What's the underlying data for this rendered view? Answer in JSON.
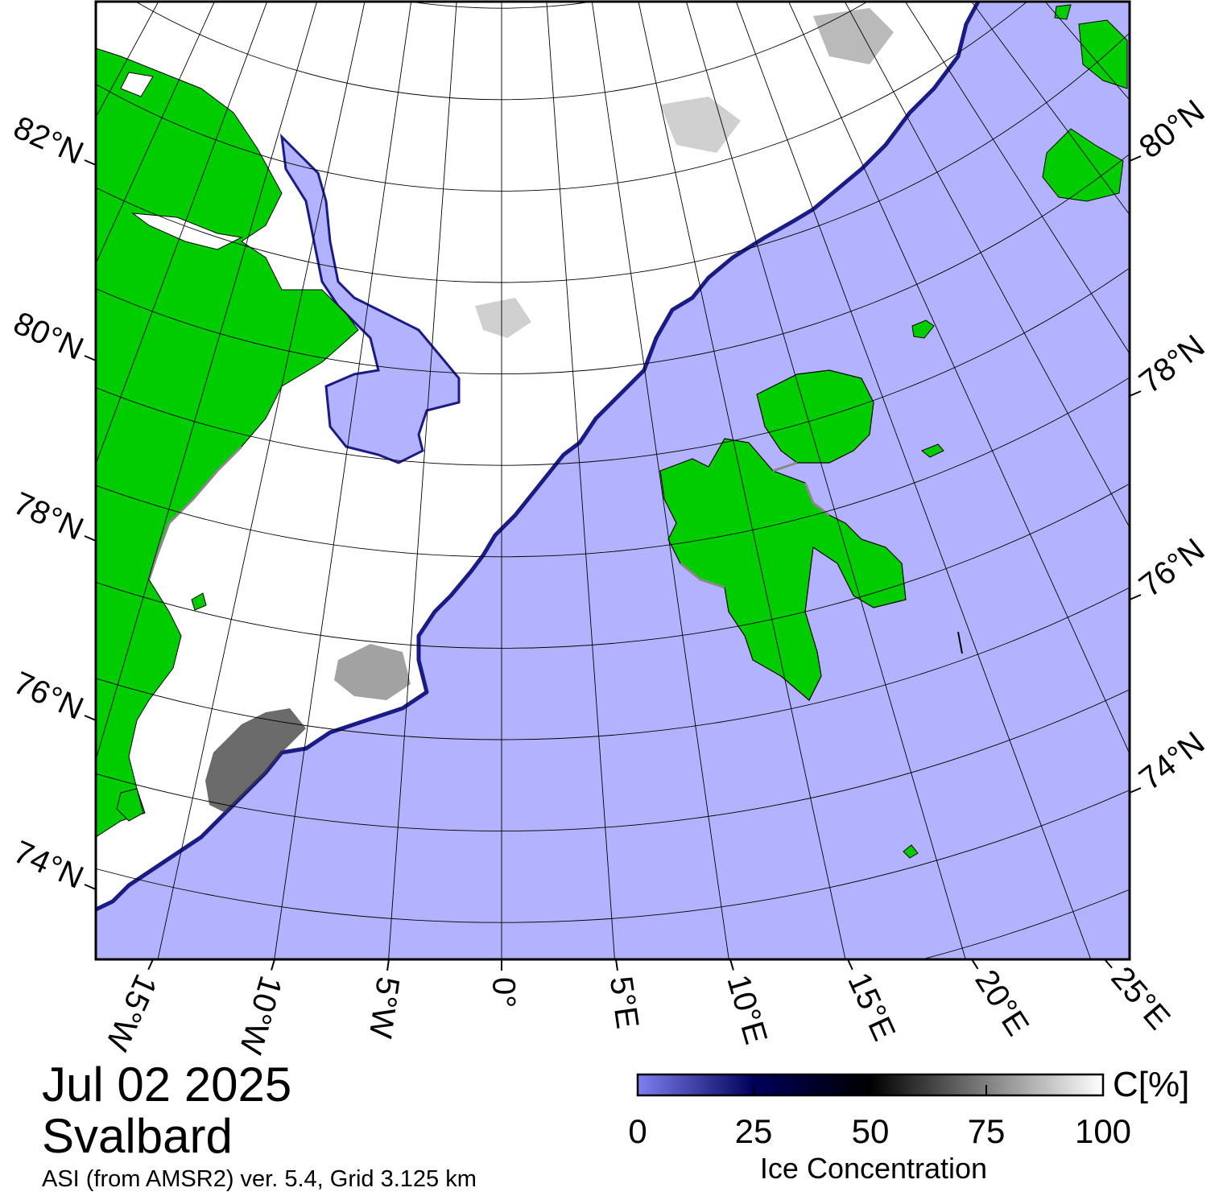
{
  "map": {
    "date": "Jul 02 2025",
    "region": "Svalbard",
    "credit": "ASI (from AMSR2) ver. 5.4,  Grid 3.125 km",
    "left_lat_labels": [
      "82°N",
      "80°N",
      "78°N",
      "76°N",
      "74°N"
    ],
    "right_lat_labels": [
      "80°N",
      "78°N",
      "76°N",
      "74°N"
    ],
    "lon_labels": [
      "15°W",
      "10°W",
      "5°W",
      "0°",
      "5°E",
      "10°E",
      "15°E",
      "20°E",
      "25°E"
    ],
    "colors": {
      "open_water": "#b2b2fe",
      "land": "#00cc00",
      "full_ice": "#ffffff",
      "land_ice_edge": "#888888",
      "graticule": "#000000"
    }
  },
  "colorbar": {
    "title": "Ice Concentration",
    "unit": "C[%]",
    "ticks": [
      "0",
      "25",
      "50",
      "75",
      "100"
    ],
    "range": [
      0,
      100
    ],
    "stops": [
      {
        "value": 0,
        "color": "#7f7ff0"
      },
      {
        "value": 25,
        "color": "#00005a"
      },
      {
        "value": 50,
        "color": "#000000"
      },
      {
        "value": 75,
        "color": "#808080"
      },
      {
        "value": 100,
        "color": "#ffffff"
      }
    ]
  }
}
